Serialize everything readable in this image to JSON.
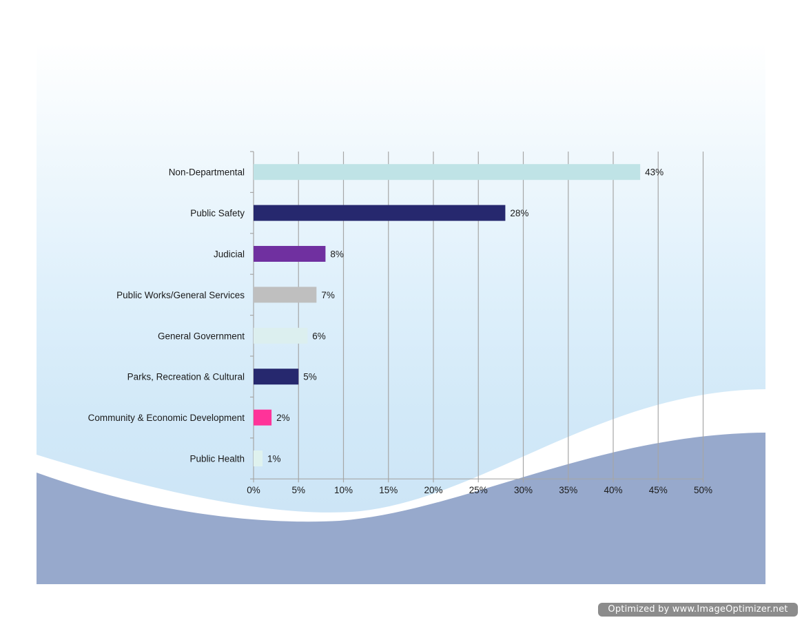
{
  "chart_data": {
    "type": "bar",
    "orientation": "horizontal",
    "categories": [
      "Non-Departmental",
      "Public Safety",
      "Judicial",
      "Public Works/General Services",
      "General Government",
      "Parks, Recreation & Cultural",
      "Community & Economic Development",
      "Public Health"
    ],
    "values": [
      43,
      28,
      8,
      7,
      6,
      5,
      2,
      1
    ],
    "data_labels": [
      "43%",
      "28%",
      "8%",
      "7%",
      "6%",
      "5%",
      "2%",
      "1%"
    ],
    "bar_colors": [
      "#bfe3e6",
      "#26286e",
      "#7030a0",
      "#bfbfbf",
      "#dcefef",
      "#26286e",
      "#ff3399",
      "#dff2ee"
    ],
    "xlim": [
      0,
      50
    ],
    "xticks": [
      "0%",
      "5%",
      "10%",
      "15%",
      "20%",
      "25%",
      "30%",
      "35%",
      "40%",
      "45%",
      "50%"
    ],
    "grid": true,
    "title": "",
    "xlabel": "",
    "ylabel": ""
  },
  "watermark": "Optimized by www.ImageOptimizer.net",
  "colors": {
    "wave_fill": "#97a9cc",
    "wave_band": "#ffffff",
    "grid_line": "#a6a6a6"
  }
}
